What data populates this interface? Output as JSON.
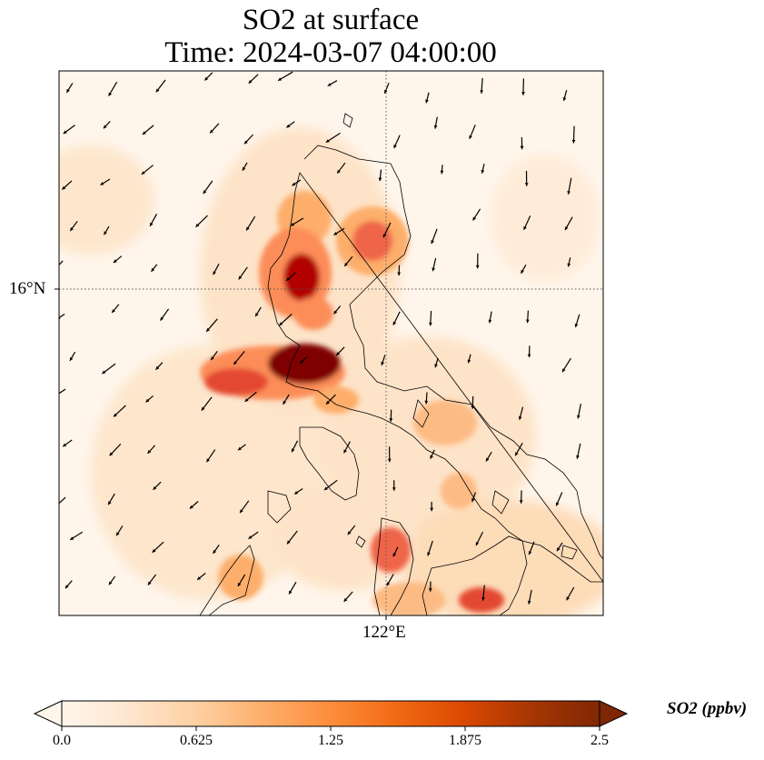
{
  "title_line1": "SO2 at surface",
  "title_line2": "Time: 2024-03-07 04:00:00",
  "lat_label": "16°N",
  "lon_label": "122°E",
  "colorbar": {
    "label": "SO2 (ppbv)",
    "ticks": [
      "0.0",
      "0.625",
      "1.25",
      "1.875",
      "2.5"
    ],
    "min": 0.0,
    "max": 2.5,
    "colors": [
      "#fff5eb",
      "#fee6ce",
      "#fdd0a2",
      "#fdae6b",
      "#fd8d3c",
      "#f16913",
      "#d94801",
      "#a63603",
      "#7f2704"
    ]
  }
}
